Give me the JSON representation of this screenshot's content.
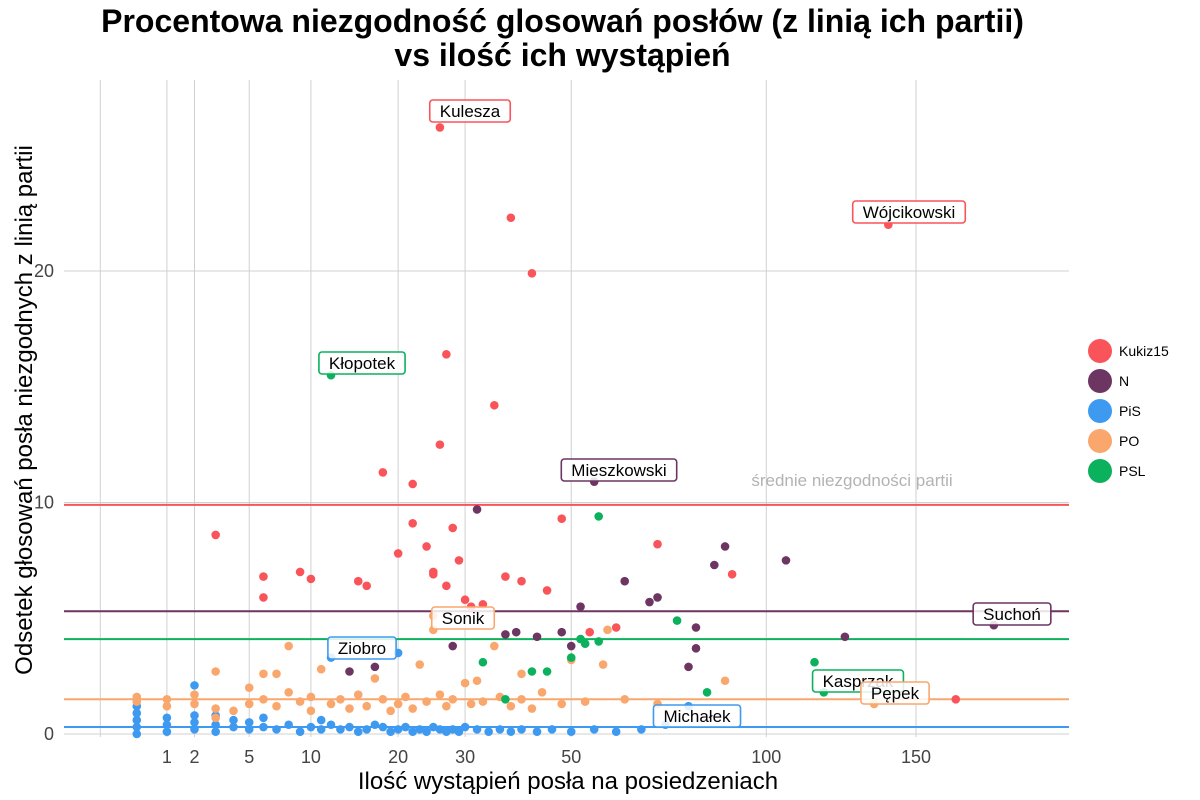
{
  "title_line1": "Procentowa niezgodność glosowań posłów (z linią ich partii)",
  "title_line2": "vs ilość ich wystąpień",
  "chart_data": {
    "type": "scatter",
    "title": "Procentowa niezgodność glosowań posłów (z linią ich partii) vs ilość ich wystąpień",
    "xlabel": "Ilość wystąpień posła na posiedzeniach",
    "ylabel": "Odsetek głosowań posła niezgodnych z linią partii",
    "x_scale": "sqrt",
    "x_ticks": [
      1,
      2,
      5,
      10,
      20,
      30,
      50,
      100,
      150
    ],
    "x_tick_labels": [
      "1",
      "2",
      "5",
      "10",
      "20",
      "30",
      "50",
      "100",
      "150"
    ],
    "y_ticks": [
      0,
      10,
      20
    ],
    "y_tick_labels": [
      "0",
      "10",
      "20"
    ],
    "xlim": [
      0,
      215
    ],
    "ylim": [
      0,
      28
    ],
    "grid": true,
    "legend_position": "right",
    "mean_lines_label": "średnie niezgodności partii",
    "series": [
      {
        "name": "Kukiz15",
        "color": "#F8545A",
        "mean": 9.9,
        "x": [
          26,
          38,
          42,
          140,
          3,
          6,
          6,
          9,
          10,
          15,
          16,
          18,
          20,
          22,
          24,
          25,
          25,
          26,
          27,
          28,
          29,
          30,
          31,
          35,
          37,
          40,
          45,
          48,
          54,
          60,
          70,
          90,
          165,
          22,
          27,
          33
        ],
        "y": [
          26.2,
          22.3,
          19.9,
          22.0,
          8.6,
          6.8,
          5.9,
          7.0,
          6.7,
          6.6,
          6.4,
          11.3,
          7.8,
          9.1,
          8.1,
          6.9,
          7.0,
          12.5,
          6.4,
          8.9,
          7.5,
          5.8,
          5.5,
          14.2,
          6.8,
          6.6,
          6.2,
          9.3,
          4.4,
          4.6,
          8.2,
          6.9,
          1.5,
          10.8,
          16.4,
          5.6
        ]
      },
      {
        "name": "N",
        "color": "#6C3562",
        "mean": 5.3,
        "x": [
          55,
          180,
          32,
          52,
          62,
          68,
          70,
          80,
          85,
          88,
          106,
          125,
          14,
          17,
          28,
          37,
          39,
          43,
          48,
          50,
          78,
          80
        ],
        "y": [
          10.9,
          4.7,
          9.7,
          5.5,
          6.6,
          5.7,
          5.9,
          4.6,
          7.3,
          8.1,
          7.5,
          4.2,
          2.7,
          2.9,
          3.8,
          4.3,
          4.4,
          4.2,
          4.4,
          3.8,
          2.9,
          3.7
        ],
        "hidden_x": [
          75
        ],
        "hidden_y": [
          4.5
        ]
      },
      {
        "name": "PiS",
        "color": "#3E9AF0",
        "mean": 0.3,
        "x": [
          0.3,
          0.3,
          0.3,
          0.3,
          0.3,
          1,
          1,
          1,
          2,
          2,
          2,
          3,
          3,
          3,
          4,
          4,
          5,
          5,
          6,
          6,
          7,
          8,
          9,
          10,
          11,
          11,
          12,
          13,
          14,
          15,
          16,
          17,
          18,
          19,
          20,
          21,
          22,
          23,
          24,
          25,
          26,
          27,
          28,
          29,
          30,
          32,
          34,
          36,
          38,
          40,
          43,
          46,
          50,
          55,
          60,
          66,
          72,
          78,
          12,
          20,
          2
        ],
        "y": [
          0.0,
          0.3,
          0.6,
          0.9,
          1.2,
          0.1,
          0.4,
          0.7,
          0.2,
          0.5,
          0.8,
          0.1,
          0.4,
          0.8,
          0.3,
          0.6,
          0.2,
          0.5,
          0.3,
          0.7,
          0.2,
          0.4,
          0.1,
          0.3,
          0.2,
          0.6,
          0.4,
          0.2,
          0.3,
          0.1,
          0.2,
          0.4,
          0.3,
          0.1,
          0.2,
          0.3,
          0.1,
          0.2,
          0.1,
          0.3,
          0.2,
          0.1,
          0.2,
          0.1,
          0.3,
          0.2,
          0.1,
          0.2,
          0.1,
          0.2,
          0.1,
          0.2,
          0.1,
          0.2,
          0.1,
          0.2,
          0.4,
          1.2,
          3.3,
          3.5,
          2.1
        ]
      },
      {
        "name": "PO",
        "color": "#F9A76D",
        "mean": 1.5,
        "x": [
          0.3,
          0.3,
          1,
          1,
          2,
          2,
          3,
          3,
          4,
          5,
          5,
          6,
          6,
          7,
          8,
          8,
          9,
          10,
          10,
          11,
          12,
          13,
          14,
          15,
          16,
          17,
          18,
          19,
          20,
          21,
          22,
          23,
          24,
          25,
          26,
          27,
          28,
          30,
          31,
          33,
          35,
          36,
          38,
          40,
          42,
          44,
          48,
          50,
          53,
          58,
          62,
          70,
          88,
          135,
          3,
          7,
          25,
          32,
          40,
          57
        ],
        "y": [
          1.4,
          1.6,
          1.2,
          1.5,
          1.3,
          1.7,
          1.1,
          2.7,
          1.0,
          1.3,
          2.0,
          1.5,
          2.6,
          1.2,
          1.8,
          3.8,
          1.4,
          1.0,
          1.6,
          2.8,
          1.3,
          1.5,
          1.1,
          1.7,
          1.2,
          2.4,
          1.5,
          1.0,
          1.3,
          1.6,
          1.1,
          3.0,
          1.4,
          4.5,
          1.7,
          1.2,
          1.5,
          2.2,
          1.3,
          1.4,
          3.8,
          1.6,
          1.2,
          1.5,
          1.1,
          1.8,
          1.3,
          3.2,
          1.4,
          4.5,
          1.5,
          1.3,
          2.3,
          1.3,
          0.7,
          2.6,
          5.1,
          2.3,
          2.6,
          3.0
        ]
      },
      {
        "name": "PSL",
        "color": "#0BB15C",
        "mean": 4.1,
        "x": [
          12,
          56,
          33,
          37,
          42,
          45,
          50,
          52,
          53,
          56,
          75,
          83,
          115,
          118
        ],
        "y": [
          15.5,
          9.4,
          3.1,
          1.5,
          2.7,
          2.7,
          3.3,
          4.1,
          3.9,
          4.0,
          4.9,
          1.8,
          3.1,
          1.8
        ]
      }
    ],
    "annotations": [
      {
        "label": "Kulesza",
        "party": "Kukiz15"
      },
      {
        "label": "Wójcikowski",
        "party": "Kukiz15"
      },
      {
        "label": "Kłopotek",
        "party": "PSL"
      },
      {
        "label": "Mieszkowski",
        "party": "N"
      },
      {
        "label": "Sonik",
        "party": "PO"
      },
      {
        "label": "Suchoń",
        "party": "N"
      },
      {
        "label": "Ziobro",
        "party": "PiS"
      },
      {
        "label": "Kasprzak",
        "party": "PSL"
      },
      {
        "label": "Pępek",
        "party": "PO"
      },
      {
        "label": "Michałek",
        "party": "PiS"
      }
    ]
  }
}
